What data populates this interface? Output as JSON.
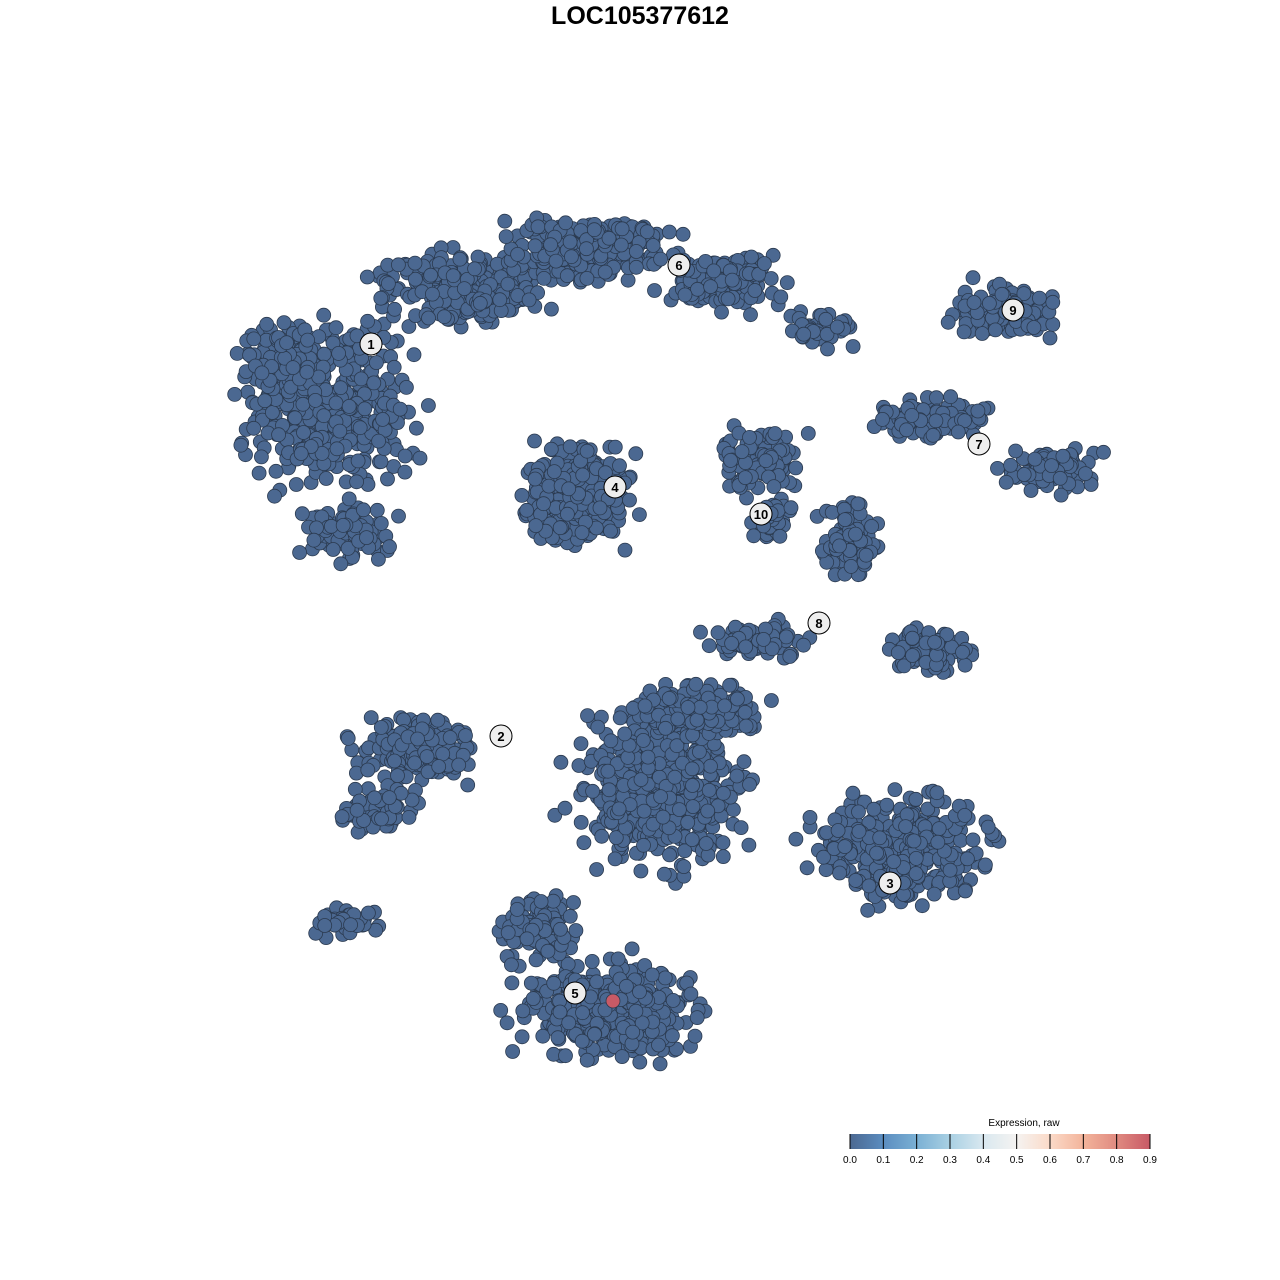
{
  "chart_data": {
    "type": "scatter",
    "title": "LOC105377612",
    "xlabel": "",
    "ylabel": "",
    "grid": false,
    "clusters": [
      "1",
      "2",
      "3",
      "4",
      "5",
      "6",
      "7",
      "8",
      "9",
      "10"
    ],
    "point_expression_default": 0.0,
    "highlighted_points": [
      {
        "cluster": "5",
        "expression": 0.9
      }
    ],
    "colorbar": {
      "title": "Expression, raw",
      "range": [
        0.0,
        0.9
      ],
      "ticks": [
        "0.0",
        "0.1",
        "0.2",
        "0.3",
        "0.4",
        "0.5",
        "0.6",
        "0.7",
        "0.8",
        "0.9"
      ],
      "colors": [
        "#4b6891",
        "#5b8dc0",
        "#7ab0d4",
        "#a9d0e3",
        "#d9e8f0",
        "#f5f3f1",
        "#fbdac8",
        "#f3b49b",
        "#e08a80",
        "#c85a66"
      ],
      "placement": "bottom-right"
    }
  }
}
